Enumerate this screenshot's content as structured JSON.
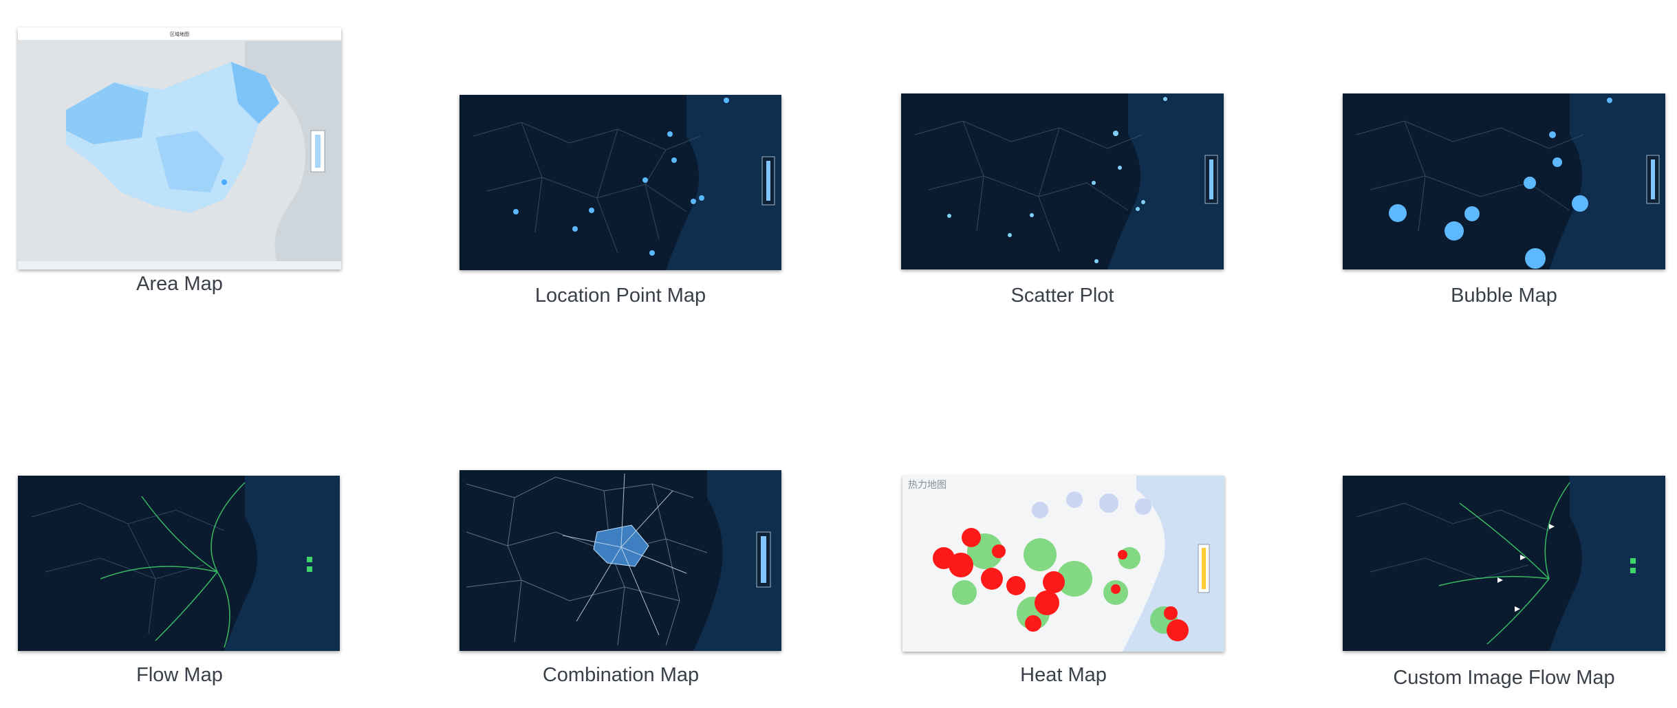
{
  "maps": [
    {
      "id": "area",
      "label": "Area Map",
      "theme": "light",
      "icon": "area-map-icon"
    },
    {
      "id": "location-point",
      "label": "Location Point Map",
      "theme": "dark",
      "icon": "location-point-map-icon"
    },
    {
      "id": "scatter",
      "label": "Scatter Plot",
      "theme": "dark",
      "icon": "scatter-plot-map-icon"
    },
    {
      "id": "bubble",
      "label": "Bubble Map",
      "theme": "dark",
      "icon": "bubble-map-icon"
    },
    {
      "id": "flow",
      "label": "Flow Map",
      "theme": "dark",
      "icon": "flow-map-icon"
    },
    {
      "id": "combination",
      "label": "Combination Map",
      "theme": "dark",
      "icon": "combination-map-icon"
    },
    {
      "id": "heat",
      "label": "Heat Map",
      "theme": "light",
      "icon": "heat-map-icon",
      "thumb_title": "热力地图"
    },
    {
      "id": "custom-image-flow",
      "label": "Custom Image Flow Map",
      "theme": "dark",
      "icon": "custom-image-flow-map-icon"
    }
  ],
  "colors": {
    "dark_bg": "#0b1b2f",
    "sea": "#0f2d4d",
    "accent_blue": "#4aa8ff",
    "light_blue": "#a9d7fb",
    "flow_green": "#3fd56b",
    "heat_red": "#ff1a1a",
    "heat_green": "#6fd36f",
    "caption_text": "#3a4048"
  }
}
